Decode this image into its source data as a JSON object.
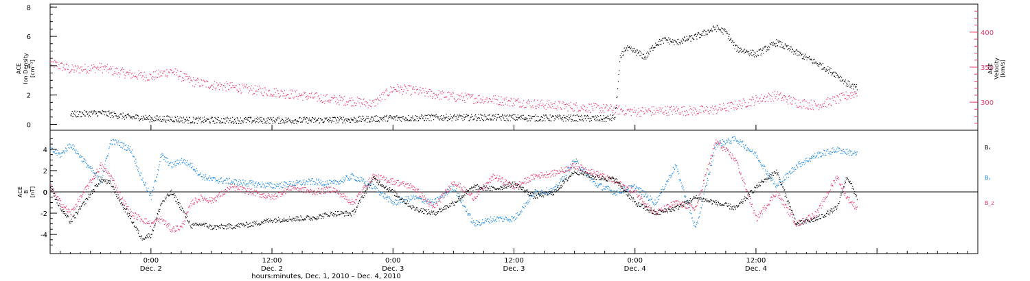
{
  "chart_data": [
    {
      "type": "scatter",
      "panel": "top",
      "ylabel_left": [
        "ACE",
        "Ion Density",
        "[cm⁻³]"
      ],
      "ylabel_right": [
        "ACE",
        "Velocity",
        "[km/s]"
      ],
      "ylim_left": [
        -0.4,
        8.2
      ],
      "yticks_left": [
        "0",
        "2",
        "4",
        "6",
        "8"
      ],
      "ylim_right": [
        260,
        440
      ],
      "yticks_right": [
        "300",
        "350",
        "400"
      ],
      "xlim_hours": [
        -10,
        82
      ],
      "grid": false,
      "series": [
        {
          "color": "#000000",
          "axis": "left",
          "x": [
            -8,
            -5,
            -4,
            -3,
            -2,
            -1,
            0,
            2,
            4,
            6,
            8,
            12,
            16,
            20,
            22,
            24,
            26,
            28,
            30,
            34,
            38,
            42,
            45,
            46,
            46.5,
            47,
            48,
            49,
            50,
            51,
            52,
            54,
            56,
            57,
            58,
            60,
            62,
            64,
            66,
            68,
            69,
            70
          ],
          "values": [
            0.7,
            0.8,
            0.7,
            0.6,
            0.5,
            0.5,
            0.4,
            0.4,
            0.3,
            0.3,
            0.3,
            0.3,
            0.3,
            0.35,
            0.4,
            0.45,
            0.45,
            0.5,
            0.5,
            0.5,
            0.45,
            0.45,
            0.4,
            0.5,
            4.5,
            5.2,
            5.0,
            4.6,
            5.5,
            5.8,
            5.6,
            6.0,
            6.6,
            6.3,
            5.2,
            4.8,
            5.6,
            4.9,
            4.2,
            3.4,
            2.8,
            2.5
          ]
        },
        {
          "color": "#e83a6a",
          "axis": "right",
          "x": [
            -10,
            -9,
            -8,
            -5,
            -4,
            -2,
            0,
            2,
            4,
            6,
            8,
            10,
            12,
            14,
            16,
            18,
            20,
            22,
            24,
            26,
            28,
            30,
            32,
            34,
            36,
            38,
            40,
            42,
            44,
            46,
            48,
            50,
            52,
            54,
            56,
            58,
            60,
            62,
            64,
            66,
            68,
            70
          ],
          "values": [
            357,
            352,
            347,
            350,
            346,
            340,
            337,
            345,
            330,
            325,
            322,
            318,
            315,
            312,
            308,
            304,
            302,
            298,
            320,
            317,
            312,
            308,
            306,
            304,
            301,
            298,
            296,
            294,
            292,
            290,
            287,
            288,
            289,
            288,
            290,
            296,
            304,
            310,
            300,
            296,
            304,
            315
          ]
        }
      ]
    },
    {
      "type": "scatter",
      "panel": "bottom",
      "ylabel": [
        "ACE",
        "B",
        "[nT]"
      ],
      "ylim": [
        -5.8,
        5.8
      ],
      "yticks": [
        "-4",
        "-2",
        "0",
        "2",
        "4"
      ],
      "xlim_hours": [
        -10,
        82
      ],
      "zero_line": true,
      "grid": false,
      "legend_right": [
        "Bₓ",
        "Bᵧ",
        "B_z"
      ],
      "series": [
        {
          "name": "Bₓ",
          "color": "#000000",
          "x": [
            -10,
            -9,
            -8,
            -5,
            -4,
            -3,
            -2,
            -1,
            0,
            1,
            2,
            3,
            4,
            5,
            6,
            8,
            10,
            12,
            14,
            16,
            18,
            20,
            22,
            24,
            26,
            28,
            30,
            32,
            34,
            36,
            38,
            40,
            42,
            44,
            46,
            48,
            50,
            52,
            54,
            56,
            58,
            60,
            62,
            64,
            66,
            68,
            69,
            70
          ],
          "values": [
            0.5,
            -1.5,
            -2.8,
            1.2,
            0.8,
            -1.0,
            -2.5,
            -4.3,
            -4.0,
            -1.0,
            0.0,
            -1.5,
            -3.2,
            -3.0,
            -3.3,
            -3.2,
            -3.0,
            -2.6,
            -2.5,
            -2.4,
            -2.0,
            -2.0,
            1.3,
            0.0,
            -1.5,
            -2.0,
            -1.0,
            0.5,
            0.3,
            0.8,
            -0.4,
            0.0,
            2.0,
            1.4,
            1.2,
            -1.0,
            -2.0,
            -1.5,
            -0.5,
            -1.0,
            -1.5,
            0.5,
            2.0,
            -3.0,
            -2.5,
            -1.5,
            1.5,
            -0.5
          ]
        },
        {
          "name": "Bᵧ",
          "color": "#1e88e5",
          "x": [
            -10,
            -9,
            -8,
            -5,
            -4,
            -3,
            -2,
            -1,
            0,
            1,
            2,
            3,
            4,
            5,
            6,
            8,
            10,
            12,
            14,
            16,
            18,
            20,
            22,
            24,
            26,
            28,
            30,
            32,
            34,
            36,
            38,
            40,
            42,
            44,
            46,
            48,
            50,
            52,
            54,
            56,
            58,
            60,
            62,
            64,
            66,
            68,
            69,
            70
          ],
          "values": [
            4.0,
            3.5,
            4.5,
            1.0,
            4.8,
            4.5,
            4.0,
            1.5,
            -0.5,
            3.5,
            2.5,
            3.0,
            2.5,
            1.5,
            1.2,
            1.0,
            0.8,
            0.6,
            0.8,
            1.0,
            0.8,
            1.5,
            0.5,
            -1.0,
            -0.5,
            -1.0,
            0.5,
            -3.0,
            -2.5,
            -2.5,
            0.0,
            0.2,
            3.0,
            0.8,
            0.0,
            0.5,
            -1.0,
            2.5,
            -3.5,
            4.5,
            5.0,
            3.5,
            0.5,
            2.5,
            3.5,
            4.0,
            3.8,
            3.6
          ]
        },
        {
          "name": "B_z",
          "color": "#e83a6a",
          "x": [
            -10,
            -9,
            -8,
            -5,
            -4,
            -3,
            -2,
            -1,
            0,
            1,
            2,
            3,
            4,
            5,
            6,
            8,
            10,
            12,
            14,
            16,
            18,
            20,
            22,
            24,
            26,
            28,
            30,
            32,
            34,
            36,
            38,
            40,
            42,
            44,
            46,
            48,
            50,
            52,
            54,
            56,
            58,
            60,
            62,
            64,
            66,
            68,
            69,
            70
          ],
          "values": [
            0.5,
            -1.0,
            -2.0,
            2.5,
            1.5,
            -0.5,
            -2.0,
            -2.5,
            -3.0,
            -2.5,
            -3.5,
            -3.3,
            -1.0,
            -0.5,
            -0.8,
            0.5,
            0.0,
            -0.5,
            0.5,
            0.0,
            0.3,
            -1.0,
            1.5,
            1.0,
            0.5,
            -1.5,
            1.0,
            -0.5,
            1.5,
            0.5,
            1.5,
            1.8,
            2.5,
            1.8,
            1.0,
            0.0,
            -2.0,
            -1.0,
            -1.5,
            4.8,
            3.0,
            -2.5,
            0.0,
            -3.0,
            -2.0,
            1.5,
            -0.5,
            -1.5
          ]
        }
      ]
    }
  ],
  "xaxis": {
    "ticks": [
      {
        "time": "0:00",
        "date": "Dec. 2",
        "hour": 0
      },
      {
        "time": "12:00",
        "date": "Dec. 2",
        "hour": 12
      },
      {
        "time": "0:00",
        "date": "Dec. 3",
        "hour": 24
      },
      {
        "time": "12:00",
        "date": "Dec. 3",
        "hour": 36
      },
      {
        "time": "0:00",
        "date": "Dec. 4",
        "hour": 48
      },
      {
        "time": "12:00",
        "date": "Dec. 4",
        "hour": 60
      }
    ],
    "title": "hours:minutes, Dec.  1, 2010 – Dec.  4, 2010"
  }
}
